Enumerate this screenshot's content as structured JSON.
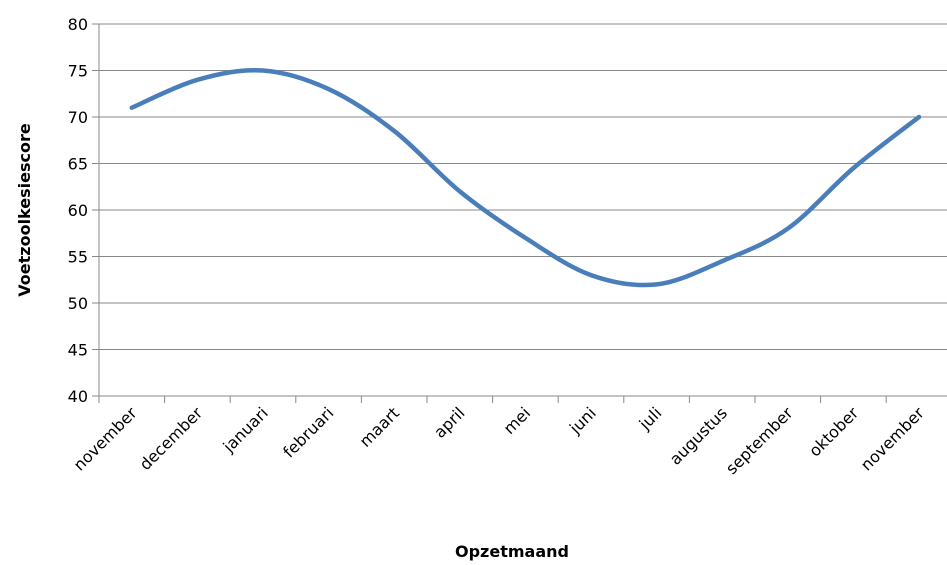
{
  "chart_data": {
    "type": "line",
    "title": "",
    "xlabel": "Opzetmaand",
    "ylabel": "Voetzoolkesiescore",
    "ylim": [
      40,
      80
    ],
    "yticks": [
      40,
      45,
      50,
      55,
      60,
      65,
      70,
      75,
      80
    ],
    "grid": true,
    "legend": "none",
    "categories": [
      "november",
      "december",
      "januari",
      "februari",
      "maart",
      "april",
      "mei",
      "juni",
      "juli",
      "augustus",
      "september",
      "oktober",
      "november"
    ],
    "series": [
      {
        "name": "",
        "color": "#4a7ebb",
        "values": [
          71,
          74,
          75,
          73,
          68.5,
          62,
          57,
          53,
          52,
          54.5,
          58,
          64.5,
          70
        ]
      }
    ]
  }
}
